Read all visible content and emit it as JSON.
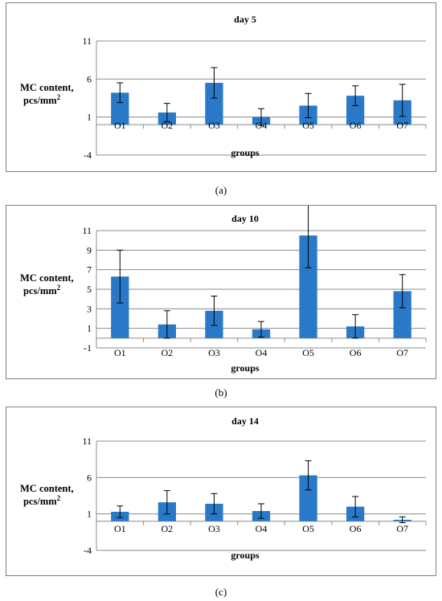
{
  "chart_data": [
    {
      "panel_label": "(a)",
      "type": "bar",
      "title": "day 5",
      "ylabel_line1": "MC content,",
      "ylabel_line2": "pcs/mm",
      "ylabel_sup": "2",
      "xlabel": "groups",
      "categories": [
        "O1",
        "O2",
        "O3",
        "O4",
        "O5",
        "O6",
        "O7"
      ],
      "values": [
        4.2,
        1.6,
        5.5,
        1.0,
        2.5,
        3.8,
        3.2
      ],
      "error": [
        1.3,
        1.2,
        2.0,
        1.1,
        1.6,
        1.3,
        2.1
      ],
      "yticks": [
        "11",
        "6",
        "1",
        "-4"
      ],
      "ylim": [
        -4,
        11
      ],
      "grid": true,
      "color": "#2979c8"
    },
    {
      "panel_label": "(b)",
      "type": "bar",
      "title": "day 10",
      "ylabel_line1": "MC content,",
      "ylabel_line2": "pcs/mm",
      "ylabel_sup": "2",
      "xlabel": "groups",
      "categories": [
        "O1",
        "O2",
        "O3",
        "O4",
        "O5",
        "O6",
        "O7"
      ],
      "values": [
        6.3,
        1.4,
        2.8,
        0.9,
        10.5,
        1.2,
        4.8
      ],
      "error": [
        2.7,
        1.4,
        1.5,
        0.8,
        3.3,
        1.2,
        1.7
      ],
      "yticks": [
        "11",
        "9",
        "7",
        "5",
        "3",
        "1",
        "-1"
      ],
      "ylim": [
        -1,
        11
      ],
      "grid": true,
      "color": "#2979c8"
    },
    {
      "panel_label": "(c)",
      "type": "bar",
      "title": "day 14",
      "ylabel_line1": "MC content,",
      "ylabel_line2": "pcs/mm",
      "ylabel_sup": "2",
      "xlabel": "groups",
      "categories": [
        "O1",
        "O2",
        "O3",
        "O4",
        "O5",
        "O6",
        "O7"
      ],
      "values": [
        1.3,
        2.6,
        2.4,
        1.4,
        6.3,
        2.0,
        0.2
      ],
      "error": [
        0.8,
        1.6,
        1.4,
        1.0,
        2.0,
        1.4,
        0.4
      ],
      "yticks": [
        "11",
        "6",
        "1",
        "-4"
      ],
      "ylim": [
        -4,
        11
      ],
      "grid": true,
      "color": "#2979c8"
    }
  ]
}
